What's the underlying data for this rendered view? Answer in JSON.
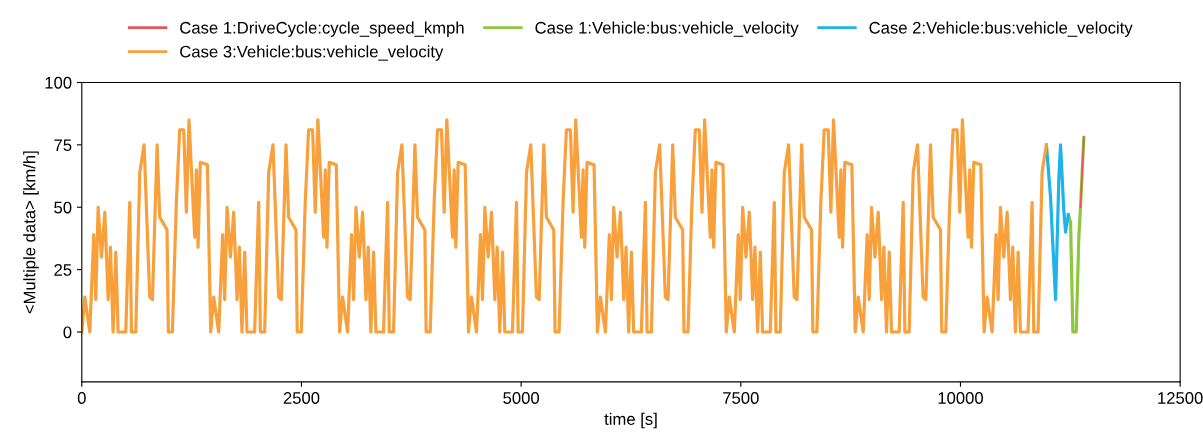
{
  "chart_data": {
    "type": "line",
    "xlabel": "time [s]",
    "ylabel": "<Multiple data> [km/h]",
    "xlim": [
      0,
      12500
    ],
    "xticks": [
      0,
      2500,
      5000,
      7500,
      10000,
      12500
    ],
    "ylim": [
      -20,
      100
    ],
    "yticks": [
      0,
      25,
      50,
      75,
      100
    ],
    "grid": false,
    "legend": "top",
    "marker": "none",
    "line_style": "solid",
    "series": [
      {
        "name": "Case 1:DriveCycle:cycle_speed_kmph",
        "color": "#e8555a",
        "x": [
          11366,
          11404
        ],
        "values": [
          50,
          78
        ]
      },
      {
        "name": "Case 1:Vehicle:bus:vehicle_velocity",
        "color": "#8dc63f",
        "x": [
          11227,
          11253,
          11279,
          11317,
          11347,
          11366,
          11404
        ],
        "values": [
          47,
          44,
          0,
          0,
          38,
          50,
          78
        ]
      },
      {
        "name": "Case 2:Vehicle:bus:vehicle_velocity",
        "color": "#1fb3e8",
        "x": [
          10978,
          11025,
          11082,
          11120,
          11139,
          11177,
          11196,
          11227
        ],
        "values": [
          75,
          54,
          13,
          62,
          75,
          48,
          40,
          47
        ]
      },
      {
        "name": "Case 3:Vehicle:bus:vehicle_velocity",
        "color": "#f7a03c",
        "x": [
          0,
          34,
          91,
          136,
          159,
          186,
          224,
          262,
          300,
          326,
          356,
          387,
          413,
          500,
          546,
          565,
          614,
          660,
          709,
          773,
          804,
          857,
          887,
          970,
          985,
          1031,
          1076,
          1114,
          1160,
          1190,
          1220,
          1285,
          1304,
          1323,
          1349,
          1429,
          1467,
          1501,
          1558,
          1603,
          1626,
          1653,
          1691,
          1729,
          1767,
          1793,
          1823,
          1854,
          1880,
          1967,
          2013,
          2032,
          2081,
          2127,
          2176,
          2240,
          2271,
          2324,
          2354,
          2437,
          2452,
          2498,
          2543,
          2581,
          2627,
          2657,
          2687,
          2752,
          2771,
          2790,
          2816,
          2896,
          2934,
          2968,
          3025,
          3070,
          3093,
          3120,
          3158,
          3196,
          3234,
          3260,
          3290,
          3321,
          3347,
          3434,
          3480,
          3499,
          3548,
          3594,
          3643,
          3707,
          3738,
          3791,
          3821,
          3904,
          3919,
          3965,
          4010,
          4048,
          4094,
          4124,
          4154,
          4219,
          4238,
          4257,
          4283,
          4363,
          4401,
          4435,
          4492,
          4537,
          4560,
          4587,
          4625,
          4663,
          4701,
          4727,
          4757,
          4788,
          4814,
          4901,
          4947,
          4966,
          5015,
          5061,
          5110,
          5174,
          5205,
          5258,
          5288,
          5371,
          5386,
          5432,
          5477,
          5515,
          5561,
          5591,
          5621,
          5686,
          5705,
          5724,
          5750,
          5830,
          5868,
          5902,
          5959,
          6004,
          6027,
          6054,
          6092,
          6130,
          6168,
          6194,
          6224,
          6255,
          6281,
          6368,
          6414,
          6433,
          6482,
          6528,
          6577,
          6641,
          6672,
          6725,
          6755,
          6838,
          6853,
          6899,
          6944,
          6982,
          7028,
          7058,
          7088,
          7153,
          7172,
          7191,
          7217,
          7297,
          7335,
          7369,
          7426,
          7471,
          7494,
          7521,
          7559,
          7597,
          7635,
          7661,
          7691,
          7722,
          7748,
          7835,
          7881,
          7900,
          7949,
          7995,
          8044,
          8108,
          8139,
          8192,
          8222,
          8305,
          8320,
          8366,
          8411,
          8449,
          8495,
          8525,
          8555,
          8620,
          8639,
          8658,
          8684,
          8764,
          8802,
          8836,
          8893,
          8938,
          8961,
          8988,
          9026,
          9064,
          9102,
          9128,
          9158,
          9189,
          9215,
          9302,
          9348,
          9367,
          9416,
          9462,
          9511,
          9575,
          9606,
          9659,
          9689,
          9772,
          9787,
          9833,
          9878,
          9916,
          9962,
          9992,
          10022,
          10087,
          10106,
          10125,
          10151,
          10231,
          10269,
          10303,
          10360,
          10405,
          10428,
          10455,
          10493,
          10531,
          10569,
          10595,
          10625,
          10656,
          10682,
          10769,
          10815,
          10834,
          10883,
          10929,
          10978
        ],
        "values": [
          0,
          14,
          0,
          39,
          13,
          50,
          30,
          48,
          13,
          34,
          0,
          32,
          0,
          0,
          52,
          0,
          0,
          64,
          75,
          14,
          13,
          75,
          46,
          41,
          0,
          0,
          52,
          81,
          81,
          48,
          85,
          38,
          65,
          34,
          68,
          67,
          0,
          14,
          0,
          39,
          13,
          50,
          30,
          48,
          13,
          34,
          0,
          32,
          0,
          0,
          52,
          0,
          0,
          64,
          75,
          14,
          13,
          75,
          46,
          41,
          0,
          0,
          52,
          81,
          81,
          48,
          85,
          38,
          65,
          34,
          68,
          67,
          0,
          14,
          0,
          39,
          13,
          50,
          30,
          48,
          13,
          34,
          0,
          32,
          0,
          0,
          52,
          0,
          0,
          64,
          75,
          14,
          13,
          75,
          46,
          41,
          0,
          0,
          52,
          81,
          81,
          48,
          85,
          38,
          65,
          34,
          68,
          67,
          0,
          14,
          0,
          39,
          13,
          50,
          30,
          48,
          13,
          34,
          0,
          32,
          0,
          0,
          52,
          0,
          0,
          64,
          75,
          14,
          13,
          75,
          46,
          41,
          0,
          0,
          52,
          81,
          81,
          48,
          85,
          38,
          65,
          34,
          68,
          67,
          0,
          14,
          0,
          39,
          13,
          50,
          30,
          48,
          13,
          34,
          0,
          32,
          0,
          0,
          52,
          0,
          0,
          64,
          75,
          14,
          13,
          75,
          46,
          41,
          0,
          0,
          52,
          81,
          81,
          48,
          85,
          38,
          65,
          34,
          68,
          67,
          0,
          14,
          0,
          39,
          13,
          50,
          30,
          48,
          13,
          34,
          0,
          32,
          0,
          0,
          52,
          0,
          0,
          64,
          75,
          14,
          13,
          75,
          46,
          41,
          0,
          0,
          52,
          81,
          81,
          48,
          85,
          38,
          65,
          34,
          68,
          67,
          0,
          14,
          0,
          39,
          13,
          50,
          30,
          48,
          13,
          34,
          0,
          32,
          0,
          0,
          52,
          0,
          0,
          64,
          75,
          14,
          13,
          75,
          46,
          41,
          0,
          0,
          52,
          81,
          81,
          48,
          85,
          38,
          65,
          34,
          68,
          67,
          0,
          14,
          0,
          39,
          13,
          50,
          30,
          48,
          13,
          34,
          0,
          32,
          0,
          0,
          52,
          0,
          0,
          64,
          75
        ]
      }
    ]
  }
}
